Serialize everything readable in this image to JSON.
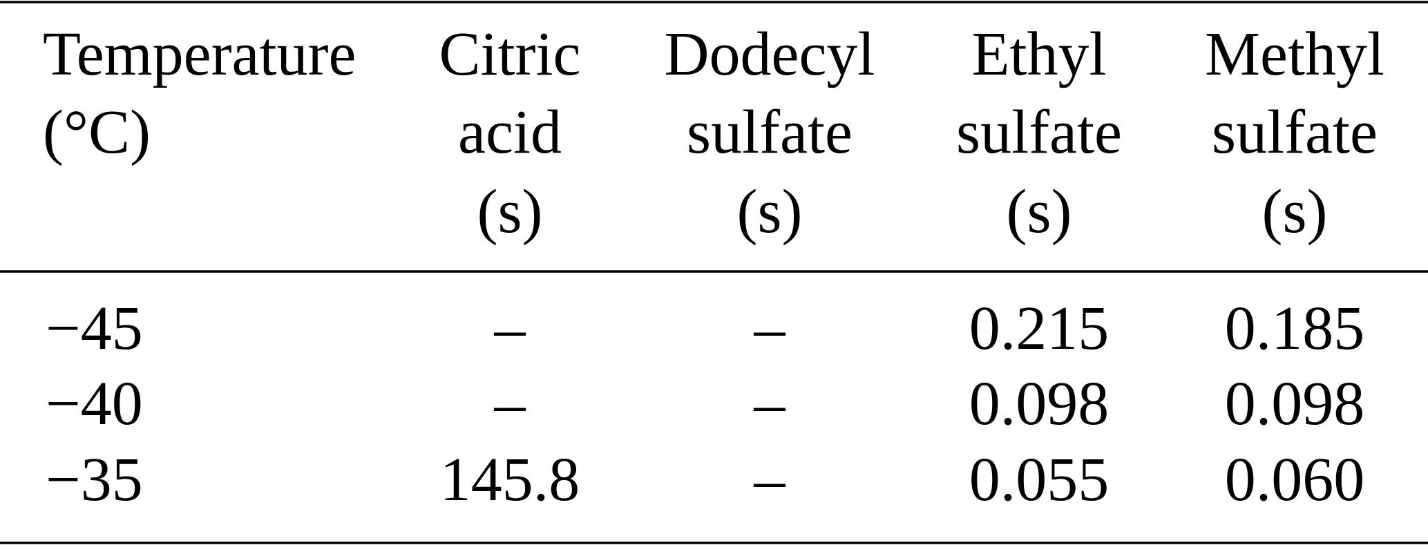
{
  "table": {
    "header": [
      [
        "Temperature",
        "(°C)"
      ],
      [
        "Citric",
        "acid",
        "(s)"
      ],
      [
        "Dodecyl",
        "sulfate",
        "(s)"
      ],
      [
        "Ethyl",
        "sulfate",
        "(s)"
      ],
      [
        "Methyl",
        "sulfate",
        "(s)"
      ]
    ],
    "rows": [
      [
        "−45",
        "–",
        "–",
        "0.215",
        "0.185"
      ],
      [
        "−40",
        "–",
        "–",
        "0.098",
        "0.098"
      ],
      [
        "−35",
        "145.8",
        "–",
        "0.055",
        "0.060"
      ]
    ]
  }
}
